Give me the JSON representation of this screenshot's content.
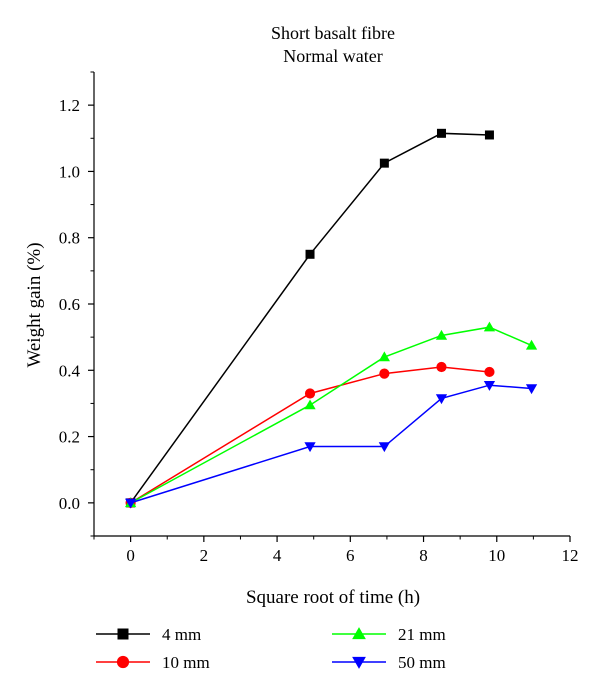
{
  "chart_data": {
    "type": "line",
    "title": [
      "Short basalt fibre",
      "Normal water"
    ],
    "xlabel": "Square root of time (h)",
    "ylabel": "Weight gain (%)",
    "xlim": [
      -1,
      12
    ],
    "ylim": [
      -0.1,
      1.3
    ],
    "x_ticks": [
      0,
      2,
      4,
      6,
      8,
      10,
      12
    ],
    "y_ticks": [
      0.0,
      0.2,
      0.4,
      0.6,
      0.8,
      1.0,
      1.2
    ],
    "x_tick_labels": [
      "0",
      "2",
      "4",
      "6",
      "8",
      "10",
      "12"
    ],
    "y_tick_labels": [
      "0.0",
      "0.2",
      "0.4",
      "0.6",
      "0.8",
      "1.0",
      "1.2"
    ],
    "grid": false,
    "legend_position": "bottom",
    "series": [
      {
        "name": "4 mm",
        "color": "#000000",
        "marker": "square",
        "x": [
          0,
          4.9,
          6.93,
          8.49,
          9.8
        ],
        "y": [
          0.0,
          0.75,
          1.025,
          1.115,
          1.11
        ]
      },
      {
        "name": "10 mm",
        "color": "#ff0000",
        "marker": "circle",
        "x": [
          0,
          4.9,
          6.93,
          8.49,
          9.8
        ],
        "y": [
          0.0,
          0.33,
          0.39,
          0.41,
          0.395
        ]
      },
      {
        "name": "21 mm",
        "color": "#00ff00",
        "marker": "triangle-up",
        "x": [
          0,
          4.9,
          6.93,
          8.49,
          9.8,
          10.95
        ],
        "y": [
          0.0,
          0.295,
          0.44,
          0.505,
          0.53,
          0.475
        ]
      },
      {
        "name": "50 mm",
        "color": "#0000ff",
        "marker": "triangle-down",
        "x": [
          0,
          4.9,
          6.93,
          8.49,
          9.8,
          10.95
        ],
        "y": [
          0.0,
          0.17,
          0.17,
          0.315,
          0.355,
          0.345
        ]
      }
    ]
  }
}
